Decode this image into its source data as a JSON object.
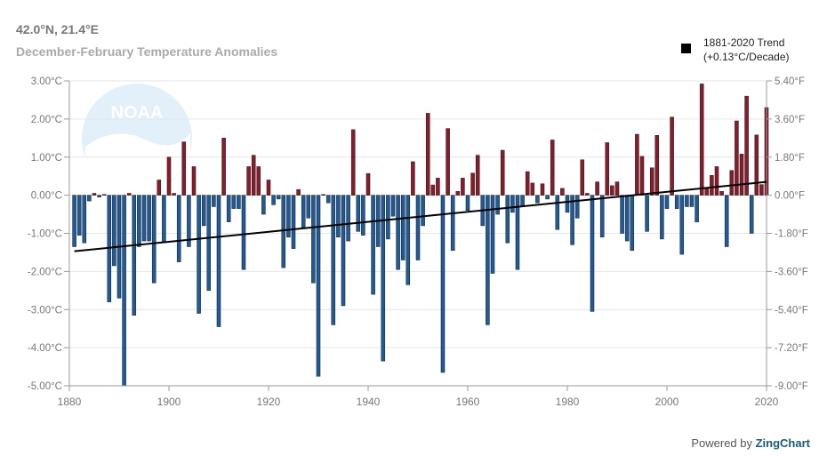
{
  "header": {
    "title": "42.0°N, 21.4°E",
    "subtitle": "December-February Temperature Anomalies"
  },
  "legend": {
    "line1": "1881-2020 Trend",
    "line2": "(+0.13°C/Decade)"
  },
  "credit": {
    "prefix": "Powered by ",
    "brand": "ZingChart"
  },
  "watermark": "NOAA",
  "colors": {
    "positive": "#8b1a2b",
    "negative": "#1f5a99",
    "trend": "#000000",
    "axis": "#999999"
  },
  "chart_data": {
    "type": "bar",
    "x_start": 1881,
    "x_end": 2020,
    "xlim": [
      1880,
      2020
    ],
    "ylim_c": [
      -5,
      3
    ],
    "ylim_f": [
      -9,
      5.4
    ],
    "x_ticks": [
      "1880",
      "1900",
      "1920",
      "1940",
      "1960",
      "1980",
      "2000",
      "2020"
    ],
    "y_ticks_left": [
      "3.00°C",
      "2.00°C",
      "1.00°C",
      "0.00°C",
      "-1.00°C",
      "-2.00°C",
      "-3.00°C",
      "-4.00°C",
      "-5.00°C"
    ],
    "y_ticks_right": [
      "5.40°F",
      "3.60°F",
      "1.80°F",
      "0.00°F",
      "-1.80°F",
      "-3.60°F",
      "-5.40°F",
      "-7.20°F",
      "-9.00°F"
    ],
    "series": [
      {
        "values": [
          -1.35,
          -1.05,
          -1.25,
          -0.15,
          0.05,
          -0.05,
          0.02,
          -2.8,
          -1.85,
          -2.7,
          -5.0,
          0.05,
          -3.15,
          -1.35,
          -1.2,
          -1.2,
          -2.3,
          0.4,
          -1.25,
          1.0,
          0.05,
          -1.75,
          1.4,
          -1.35,
          0.75,
          -3.1,
          -0.8,
          -2.5,
          -0.3,
          -3.45,
          1.5,
          -0.7,
          -0.35,
          -0.35,
          -1.95,
          0.75,
          1.05,
          0.75,
          -0.5,
          0.4,
          -0.25,
          -0.1,
          -1.9,
          -1.1,
          -1.4,
          0.15,
          -0.85,
          -0.6,
          -2.3,
          -4.75,
          0.02,
          -0.2,
          -3.4,
          -1.1,
          -2.9,
          -1.2,
          1.72,
          -0.95,
          -1.05,
          0.57,
          -2.6,
          -1.35,
          -4.35,
          -1.15,
          -0.55,
          -1.95,
          -1.7,
          -2.35,
          0.88,
          -1.7,
          -0.8,
          2.15,
          0.27,
          0.45,
          -4.65,
          1.75,
          -1.45,
          0.1,
          0.45,
          -0.4,
          0.58,
          1.05,
          -0.8,
          -3.4,
          -2.05,
          -0.5,
          1.18,
          -1.25,
          -0.45,
          -1.95,
          -0.3,
          0.62,
          0.32,
          -0.2,
          0.3,
          -0.1,
          1.45,
          -0.9,
          0.18,
          -0.45,
          -1.3,
          -0.6,
          0.93,
          0.05,
          -3.05,
          0.35,
          -1.1,
          1.38,
          0.25,
          0.35,
          -1.0,
          -1.2,
          -1.45,
          1.6,
          1.02,
          -0.95,
          0.72,
          1.57,
          -1.15,
          -0.35,
          2.05,
          -0.35,
          -1.55,
          -0.3,
          -0.3,
          -0.7,
          2.92,
          0.2,
          0.52,
          0.75,
          0.1,
          -1.35,
          0.65,
          1.95,
          1.08,
          2.6,
          -1.0,
          1.58,
          0.28,
          2.3
        ]
      }
    ],
    "trend": {
      "name": "1881-2020 Trend",
      "start": [
        1881,
        -1.47
      ],
      "end": [
        2020,
        0.35
      ]
    },
    "grid": true
  }
}
